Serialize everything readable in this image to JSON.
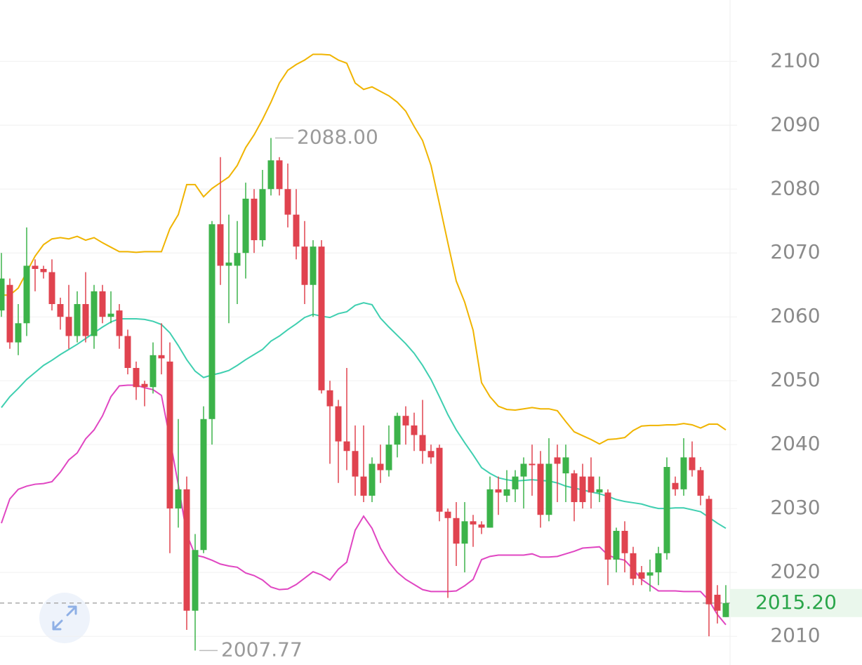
{
  "chart_data": {
    "type": "candlestick",
    "up_color": "#3cb34a",
    "down_color": "#e0434f",
    "open": [
      2061,
      2065,
      2056,
      2059,
      2068,
      2067.5,
      2067,
      2062,
      2060,
      2057,
      2062,
      2057,
      2064,
      2060,
      2061,
      2057,
      2052,
      2049.5,
      2049,
      2054,
      2053,
      2030,
      2033,
      2014,
      2023.5,
      2044,
      2074.5,
      2068,
      2068,
      2070,
      2078.5,
      2072,
      2080,
      2084.5,
      2080,
      2076,
      2071,
      2065,
      2071,
      2048.5,
      2046,
      2040.5,
      2039,
      2035,
      2032,
      2037,
      2036,
      2040,
      2044.5,
      2043,
      2041.5,
      2039,
      2039.5,
      2029.5,
      2028.5,
      2024.5,
      2028,
      2027.5,
      2027,
      2033,
      2032,
      2033,
      2035,
      2037,
      2037,
      2029,
      2038,
      2035.5,
      2035.5,
      2035,
      2035,
      2032.5,
      2032.5,
      2022,
      2026.5,
      2023,
      2020,
      2019.5,
      2020,
      2023,
      2034,
      2033,
      2038,
      2036,
      2031.5,
      2016.5,
      2013
    ],
    "high": [
      2070,
      2066,
      2062,
      2074,
      2069,
      2068,
      2069,
      2063,
      2065,
      2064,
      2067,
      2065,
      2065,
      2064,
      2062,
      2058,
      2053,
      2050,
      2056,
      2059,
      2056,
      2044,
      2035,
      2026,
      2046,
      2075,
      2085,
      2076,
      2075,
      2081,
      2080,
      2083,
      2088,
      2085,
      2084,
      2080,
      2075,
      2072,
      2072,
      2050,
      2047,
      2052,
      2043,
      2043,
      2038,
      2040,
      2043,
      2045,
      2046,
      2045,
      2047,
      2040,
      2040,
      2030,
      2031,
      2031,
      2029,
      2028,
      2035,
      2035,
      2036,
      2036,
      2038,
      2040,
      2039,
      2041,
      2040,
      2040,
      2036,
      2037,
      2038,
      2035,
      2033,
      2027,
      2028,
      2024,
      2021,
      2022,
      2024,
      2038,
      2035,
      2041,
      2040.5,
      2036.5,
      2032,
      2018,
      2018
    ],
    "low": [
      2060,
      2055,
      2054,
      2057,
      2064,
      2066,
      2061,
      2058,
      2055,
      2056,
      2056,
      2055,
      2059,
      2059,
      2055,
      2051,
      2047,
      2046,
      2048,
      2051,
      2023,
      2027,
      2011,
      2007.77,
      2023,
      2040,
      2065,
      2059,
      2062,
      2066,
      2070,
      2071,
      2079,
      2079,
      2074,
      2069,
      2062,
      2060,
      2048,
      2037,
      2034,
      2036,
      2032,
      2031,
      2031,
      2034,
      2035,
      2038,
      2040,
      2039,
      2037,
      2037,
      2028,
      2016,
      2021,
      2020,
      2024,
      2026,
      2027,
      2029,
      2031,
      2031,
      2030,
      2032,
      2027,
      2028,
      2031,
      2031,
      2028,
      2030,
      2030,
      2031,
      2018,
      2020,
      2020,
      2018,
      2018,
      2017,
      2018,
      2022,
      2032,
      2032,
      2035,
      2030.5,
      2010,
      2012,
      2013
    ],
    "close": [
      2066,
      2056,
      2059,
      2068,
      2067.5,
      2067,
      2062,
      2060,
      2057,
      2062,
      2057,
      2064,
      2060,
      2060.5,
      2057,
      2052,
      2049,
      2049,
      2054,
      2053.5,
      2030,
      2033,
      2014,
      2023.5,
      2044,
      2074.5,
      2068,
      2068.5,
      2070,
      2078.5,
      2072,
      2080,
      2084.5,
      2080,
      2076,
      2071,
      2065,
      2071,
      2048.5,
      2046,
      2040.5,
      2039,
      2035,
      2032,
      2037,
      2036,
      2040,
      2044.5,
      2043,
      2041.5,
      2039,
      2038,
      2029.5,
      2028.5,
      2024.5,
      2028,
      2027.5,
      2027,
      2033,
      2032.5,
      2033,
      2035,
      2037,
      2036.8,
      2029,
      2037,
      2037,
      2038,
      2031,
      2031,
      2032.5,
      2033,
      2022,
      2026.5,
      2023,
      2019,
      2019,
      2020,
      2023,
      2036.5,
      2033,
      2038,
      2036,
      2032,
      2015,
      2014,
      2015.2
    ],
    "bands": [
      {
        "color": "#f0b400",
        "values": [
          2063.4,
          2063.4,
          2064.5,
          2067,
          2069.5,
          2071.3,
          2072.2,
          2072.4,
          2072.2,
          2072.6,
          2072,
          2072.4,
          2071.6,
          2070.9,
          2070.2,
          2070.2,
          2070.1,
          2070.2,
          2070.2,
          2070.2,
          2073.8,
          2076,
          2080.7,
          2080.7,
          2078.8,
          2080.1,
          2081,
          2081.9,
          2083.7,
          2086.5,
          2088.5,
          2090.9,
          2093.6,
          2096.6,
          2098.6,
          2099.5,
          2100.2,
          2101.1,
          2101.1,
          2101,
          2100.2,
          2099.7,
          2096.6,
          2095.6,
          2096,
          2095.3,
          2094.6,
          2093.6,
          2092.2,
          2089.8,
          2087.6,
          2083.7,
          2077.7,
          2071.6,
          2065.6,
          2062.3,
          2057.9,
          2049.7,
          2047.5,
          2046,
          2045.5,
          2045.4,
          2045.6,
          2045.8,
          2045.6,
          2045.6,
          2045.3,
          2043.6,
          2042,
          2041.4,
          2040.8,
          2040.1,
          2040.8,
          2040.9,
          2041.1,
          2042.2,
          2042.9,
          2043,
          2043,
          2043.1,
          2043.1,
          2043.3,
          2043.1,
          2042.6,
          2043.2,
          2043.2,
          2042.3
        ]
      },
      {
        "color": "#3fcfb0",
        "values": [
          2045.8,
          2047.5,
          2048.8,
          2050.2,
          2051.3,
          2052.4,
          2053.2,
          2054.1,
          2054.9,
          2055.7,
          2056.6,
          2057.5,
          2058.4,
          2059.2,
          2059.7,
          2059.7,
          2059.7,
          2059.6,
          2059.3,
          2058.8,
          2057.5,
          2055.5,
          2053.3,
          2051.5,
          2050.5,
          2050.9,
          2051.2,
          2051.6,
          2052.4,
          2053.3,
          2054.1,
          2054.9,
          2056.2,
          2057,
          2058,
          2058.9,
          2059.9,
          2060.4,
          2060.1,
          2059.9,
          2060.5,
          2060.8,
          2061.8,
          2062.2,
          2061.9,
          2059.8,
          2058.4,
          2057.1,
          2055.8,
          2054.3,
          2052.4,
          2050.2,
          2047.5,
          2044.7,
          2042.3,
          2040.3,
          2038.4,
          2036.4,
          2035.5,
          2034.8,
          2034.5,
          2034.3,
          2034.4,
          2034.5,
          2034.4,
          2034.3,
          2034,
          2033.5,
          2033.2,
          2032.9,
          2032.6,
          2032.3,
          2031.9,
          2031.4,
          2031.1,
          2030.9,
          2030.7,
          2030.3,
          2030,
          2030,
          2030.1,
          2030.1,
          2029.8,
          2029.5,
          2028.6,
          2027.7,
          2026.9
        ]
      },
      {
        "color": "#e046c2",
        "values": [
          2027.7,
          2031.5,
          2033,
          2033.5,
          2033.8,
          2033.9,
          2034.2,
          2035.7,
          2037.6,
          2038.7,
          2040.9,
          2042.3,
          2044.5,
          2047.5,
          2049.2,
          2049.3,
          2049.3,
          2048.9,
          2048.6,
          2047.7,
          2040.9,
          2033.7,
          2026,
          2022.7,
          2022.4,
          2021.9,
          2021.3,
          2021,
          2020.8,
          2019.9,
          2019.5,
          2018.8,
          2017.7,
          2017.3,
          2017.4,
          2018.1,
          2019.1,
          2020.1,
          2019.6,
          2018.8,
          2020.5,
          2021.6,
          2026.6,
          2028.8,
          2026.9,
          2023.8,
          2021.6,
          2020,
          2018.9,
          2018.1,
          2017.3,
          2017,
          2017,
          2017,
          2017.1,
          2017.9,
          2018.9,
          2022,
          2022.5,
          2022.7,
          2022.7,
          2022.7,
          2022.7,
          2022.9,
          2022.4,
          2022.4,
          2022.5,
          2022.9,
          2023.3,
          2023.8,
          2023.9,
          2024,
          2022.7,
          2022.2,
          2021.9,
          2020.5,
          2018.9,
          2018,
          2017.1,
          2017.1,
          2017.1,
          2017,
          2017,
          2017,
          2015.6,
          2013.4,
          2011.8
        ]
      }
    ],
    "ylim": [
      2005.5,
      2109.6
    ],
    "yticks": [
      2010,
      2020,
      2030,
      2040,
      2050,
      2060,
      2070,
      2080,
      2090,
      2100
    ],
    "grid": true,
    "annotations": [
      {
        "value": 2088,
        "label": "2088.00"
      },
      {
        "value": 2007.77,
        "label": "2007.77"
      }
    ],
    "last_price": {
      "value": 2015.2,
      "label": "2015.20",
      "color": "#2aa64a"
    }
  }
}
